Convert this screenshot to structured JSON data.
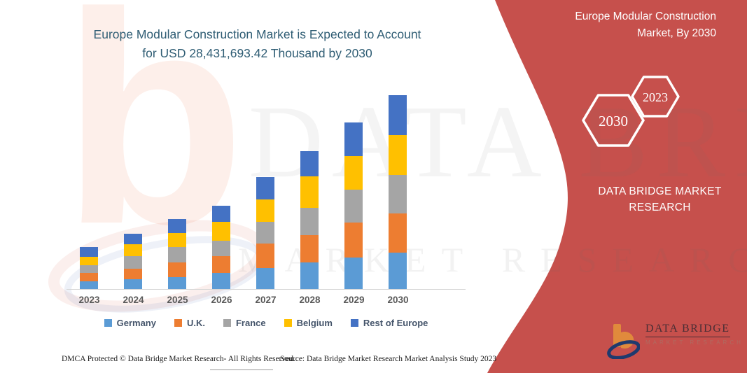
{
  "header": {
    "title_line1": "Europe Modular Construction Market is Expected to Account",
    "title_line2": "for USD 28,431,693.42 Thousand  by 2030"
  },
  "side_panel": {
    "bg_color": "#C6504C",
    "title_line1": "Europe Modular Construction",
    "title_line2": "Market, By 2030",
    "hexagon_large": "2030",
    "hexagon_small": "2023",
    "brand_line1": "DATA BRIDGE MARKET",
    "brand_line2": "RESEARCH"
  },
  "logo": {
    "name": "DATA BRIDGE",
    "subtitle": "MARKET RESEARCH"
  },
  "watermark": {
    "line1": "DATA BRIDGE",
    "line2": "MARKET RESEARCHER"
  },
  "footer": {
    "left": "DMCA Protected © Data Bridge Market Research-  All Rights Reserved.",
    "source": "Source: Data Bridge Market Research  Market Analysis Study 2023"
  },
  "chart_data": {
    "type": "bar",
    "stacked": true,
    "title": "Europe Modular Construction Market is Expected to Account for USD 28,431,693.42 Thousand by 2030",
    "xlabel": "",
    "ylabel": "",
    "unit": "USD Thousand",
    "y_axis_visible": false,
    "grid": false,
    "legend_position": "bottom",
    "note": "No y-axis shown; values estimated from bar heights, with the 2030 total anchored to USD 28,431,693.42 Thousand stated in the title.",
    "categories": [
      "2023",
      "2024",
      "2025",
      "2026",
      "2027",
      "2028",
      "2029",
      "2030"
    ],
    "series": [
      {
        "name": "Germany",
        "color": "#5B9BD5",
        "values": [
          1140000,
          1480000,
          1730000,
          2415000,
          3110000,
          3910000,
          4590000,
          5360000
        ]
      },
      {
        "name": "U.K.",
        "color": "#ED7D31",
        "values": [
          1215000,
          1555000,
          2175000,
          2415000,
          3555000,
          4040000,
          5180000,
          5700000
        ]
      },
      {
        "name": "France",
        "color": "#A5A5A5",
        "values": [
          1140000,
          1835000,
          2250000,
          2310000,
          3180000,
          3910000,
          4840000,
          5700000
        ]
      },
      {
        "name": "Belgium",
        "color": "#FFC000",
        "values": [
          1275000,
          1690000,
          2075000,
          2695000,
          3285000,
          4665000,
          4840000,
          5875000
        ]
      },
      {
        "name": "Rest of Europe",
        "color": "#4472C4",
        "values": [
          1380000,
          1585000,
          2000000,
          2355000,
          3320000,
          3730000,
          4945000,
          5796693.42
        ]
      }
    ],
    "totals": [
      6150000,
      8145000,
      10230000,
      12190000,
      16450000,
      20255000,
      24395000,
      28431693.42
    ]
  }
}
